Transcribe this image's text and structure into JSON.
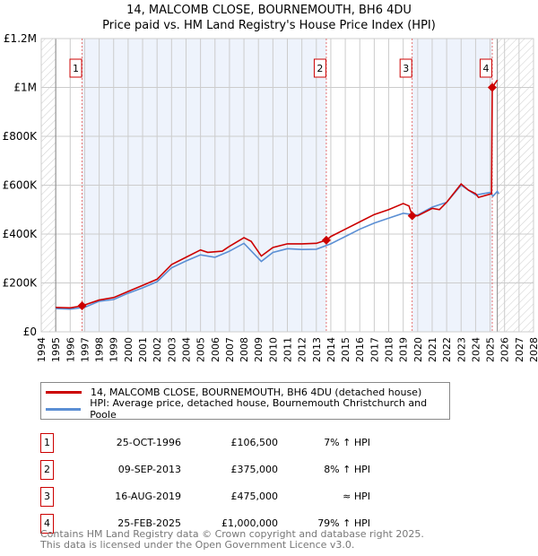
{
  "chart_data": {
    "type": "line",
    "title": "14, MALCOMB CLOSE, BOURNEMOUTH, BH6 4DU",
    "subtitle": "Price paid vs. HM Land Registry's House Price Index (HPI)",
    "xlim": [
      1994,
      2028
    ],
    "ylim": [
      0,
      1200000
    ],
    "x_ticks": [
      "1994",
      "1995",
      "1996",
      "1997",
      "1998",
      "1999",
      "2000",
      "2001",
      "2002",
      "2003",
      "2004",
      "2005",
      "2006",
      "2007",
      "2008",
      "2009",
      "2010",
      "2011",
      "2012",
      "2013",
      "2014",
      "2015",
      "2016",
      "2017",
      "2018",
      "2019",
      "2020",
      "2021",
      "2022",
      "2023",
      "2024",
      "2025",
      "2026",
      "2027",
      "2028"
    ],
    "y_ticks": [
      {
        "v": 0,
        "label": "£0"
      },
      {
        "v": 200000,
        "label": "£200K"
      },
      {
        "v": 400000,
        "label": "£400K"
      },
      {
        "v": 600000,
        "label": "£600K"
      },
      {
        "v": 800000,
        "label": "£800K"
      },
      {
        "v": 1000000,
        "label": "£1M"
      },
      {
        "v": 1200000,
        "label": "£1.2M"
      }
    ],
    "grid": true,
    "hatched_ranges": [
      [
        1994,
        1995
      ],
      [
        2025.5,
        2028
      ]
    ],
    "shaded_ranges": [
      [
        1996.82,
        2013.69
      ],
      [
        2019.62,
        2025.15
      ]
    ],
    "series": [
      {
        "name": "14, MALCOMB CLOSE, BOURNEMOUTH, BH6 4DU (detached house)",
        "color": "#cc0000",
        "x": [
          1995,
          1996,
          1996.82,
          1998,
          1999,
          2000,
          2001,
          2002,
          2003,
          2004,
          2005,
          2005.5,
          2006.5,
          2007,
          2008,
          2008.5,
          2009.2,
          2010,
          2011,
          2012,
          2013,
          2013.69,
          2014,
          2015,
          2016,
          2017,
          2018,
          2019,
          2019.4,
          2019.62,
          2020,
          2021,
          2021.5,
          2022,
          2023,
          2023.5,
          2024,
          2024.2,
          2025.1,
          2025.15,
          2025.5
        ],
        "y": [
          100000,
          98000,
          106500,
          130000,
          140000,
          165000,
          190000,
          215000,
          275000,
          305000,
          335000,
          325000,
          330000,
          350000,
          385000,
          370000,
          310000,
          345000,
          360000,
          360000,
          362000,
          375000,
          390000,
          420000,
          450000,
          480000,
          500000,
          525000,
          515000,
          475000,
          475000,
          505000,
          500000,
          530000,
          605000,
          580000,
          565000,
          550000,
          565000,
          1000000,
          1030000
        ]
      },
      {
        "name": "HPI: Average price, detached house, Bournemouth Christchurch and Poole",
        "color": "#5b8fd4",
        "x": [
          1995,
          1996,
          1997,
          1998,
          1999,
          2000,
          2001,
          2002,
          2003,
          2004,
          2005,
          2006,
          2007,
          2008,
          2009.2,
          2010,
          2011,
          2012,
          2013,
          2014,
          2015,
          2016,
          2017,
          2018,
          2019,
          2019.6,
          2020,
          2021,
          2022,
          2023,
          2024,
          2025,
          2025.2,
          2025.5,
          2025.6
        ],
        "y": [
          95000,
          93000,
          100000,
          125000,
          132000,
          158000,
          180000,
          205000,
          262000,
          290000,
          315000,
          305000,
          330000,
          362000,
          288000,
          325000,
          340000,
          337000,
          338000,
          360000,
          390000,
          420000,
          445000,
          465000,
          485000,
          480000,
          478000,
          510000,
          530000,
          600000,
          560000,
          570000,
          555000,
          575000,
          565000
        ]
      }
    ],
    "sales": [
      {
        "n": "1",
        "x": 1996.82,
        "price": 106500,
        "date": "25-OCT-1996",
        "price_label": "£106,500",
        "hpi": "7% ↑ HPI"
      },
      {
        "n": "2",
        "x": 2013.69,
        "price": 375000,
        "date": "09-SEP-2013",
        "price_label": "£375,000",
        "hpi": "8% ↑ HPI"
      },
      {
        "n": "3",
        "x": 2019.62,
        "price": 475000,
        "date": "16-AUG-2019",
        "price_label": "£475,000",
        "hpi": "≈ HPI"
      },
      {
        "n": "4",
        "x": 2025.15,
        "price": 1000000,
        "date": "25-FEB-2025",
        "price_label": "£1,000,000",
        "hpi": "79% ↑ HPI"
      }
    ],
    "legend_position": "below"
  },
  "footer": {
    "line1": "Contains HM Land Registry data © Crown copyright and database right 2025.",
    "line2": "This data is licensed under the Open Government Licence v3.0."
  }
}
